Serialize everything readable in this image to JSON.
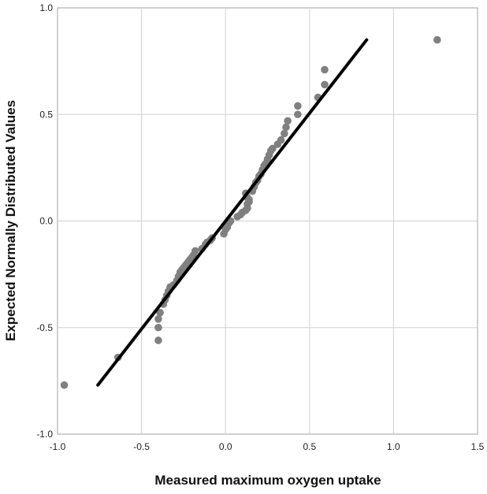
{
  "chart_data": {
    "type": "scatter",
    "title": "",
    "xlabel": "Measured maximum oxygen uptake",
    "ylabel": "Expected Normally Distributed Values",
    "xlim": [
      -1.0,
      1.5
    ],
    "ylim": [
      -1.0,
      1.0
    ],
    "x_ticks": [
      "-1.0",
      "-0.5",
      "0.0",
      "0.5",
      "1.0",
      "1.5"
    ],
    "y_ticks": [
      "1.0",
      "0.5",
      "0.0",
      "-0.5",
      "-1.0"
    ],
    "x_tick_values": [
      -1.0,
      -0.5,
      0.0,
      0.5,
      1.0,
      1.5
    ],
    "y_tick_values": [
      1.0,
      0.5,
      0.0,
      -0.5,
      -1.0
    ],
    "grid": true,
    "legend": "none",
    "point_color": "#808080",
    "line_color": "#000000",
    "reference_line": {
      "x": [
        -0.76,
        0.84
      ],
      "y": [
        -0.77,
        0.85
      ]
    },
    "points": [
      [
        -0.96,
        -0.77
      ],
      [
        -0.64,
        -0.64
      ],
      [
        -0.4,
        -0.56
      ],
      [
        -0.4,
        -0.5
      ],
      [
        -0.4,
        -0.46
      ],
      [
        -0.39,
        -0.43
      ],
      [
        -0.37,
        -0.39
      ],
      [
        -0.36,
        -0.37
      ],
      [
        -0.35,
        -0.35
      ],
      [
        -0.34,
        -0.33
      ],
      [
        -0.33,
        -0.31
      ],
      [
        -0.31,
        -0.3
      ],
      [
        -0.29,
        -0.28
      ],
      [
        -0.28,
        -0.26
      ],
      [
        -0.27,
        -0.24
      ],
      [
        -0.26,
        -0.23
      ],
      [
        -0.25,
        -0.22
      ],
      [
        -0.24,
        -0.21
      ],
      [
        -0.23,
        -0.2
      ],
      [
        -0.22,
        -0.19
      ],
      [
        -0.21,
        -0.18
      ],
      [
        -0.2,
        -0.17
      ],
      [
        -0.19,
        -0.16
      ],
      [
        -0.18,
        -0.14
      ],
      [
        -0.14,
        -0.13
      ],
      [
        -0.12,
        -0.11
      ],
      [
        -0.11,
        -0.1
      ],
      [
        -0.09,
        -0.09
      ],
      [
        -0.08,
        -0.08
      ],
      [
        -0.01,
        -0.06
      ],
      [
        0.0,
        -0.04
      ],
      [
        0.01,
        -0.03
      ],
      [
        0.02,
        -0.01
      ],
      [
        0.03,
        0.0
      ],
      [
        0.07,
        0.02
      ],
      [
        0.09,
        0.03
      ],
      [
        0.1,
        0.04
      ],
      [
        0.12,
        0.05
      ],
      [
        0.13,
        0.06
      ],
      [
        0.13,
        0.08
      ],
      [
        0.14,
        0.09
      ],
      [
        0.14,
        0.1
      ],
      [
        0.13,
        0.11
      ],
      [
        0.12,
        0.13
      ],
      [
        0.16,
        0.14
      ],
      [
        0.17,
        0.16
      ],
      [
        0.18,
        0.18
      ],
      [
        0.19,
        0.19
      ],
      [
        0.2,
        0.21
      ],
      [
        0.21,
        0.22
      ],
      [
        0.22,
        0.24
      ],
      [
        0.23,
        0.26
      ],
      [
        0.24,
        0.27
      ],
      [
        0.25,
        0.29
      ],
      [
        0.26,
        0.31
      ],
      [
        0.27,
        0.33
      ],
      [
        0.28,
        0.34
      ],
      [
        0.31,
        0.36
      ],
      [
        0.33,
        0.38
      ],
      [
        0.35,
        0.41
      ],
      [
        0.36,
        0.44
      ],
      [
        0.37,
        0.47
      ],
      [
        0.43,
        0.5
      ],
      [
        0.43,
        0.54
      ],
      [
        0.55,
        0.58
      ],
      [
        0.59,
        0.64
      ],
      [
        0.59,
        0.71
      ],
      [
        1.26,
        0.85
      ]
    ]
  }
}
